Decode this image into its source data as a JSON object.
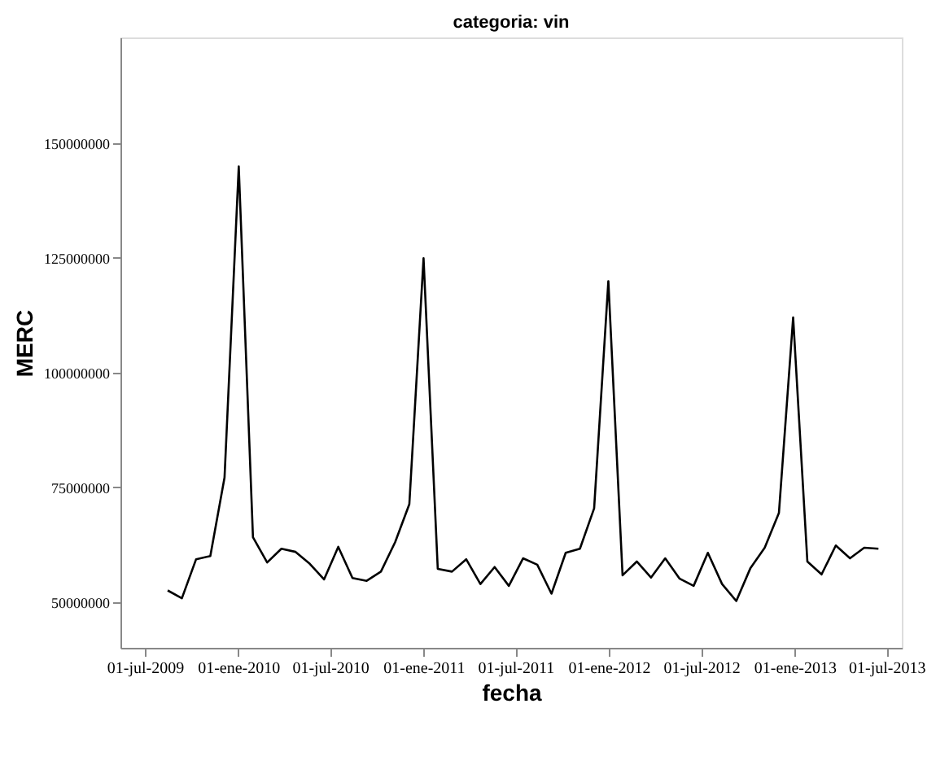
{
  "chart_data": {
    "type": "line",
    "title": "categoria: vin",
    "xlabel": "fecha",
    "ylabel": "MERC",
    "x": [
      "2009-08-15",
      "2009-09-12",
      "2009-10-10",
      "2009-11-07",
      "2009-12-05",
      "2010-01-02",
      "2010-01-30",
      "2010-02-27",
      "2010-03-27",
      "2010-04-24",
      "2010-05-22",
      "2010-06-19",
      "2010-07-17",
      "2010-08-14",
      "2010-09-11",
      "2010-10-09",
      "2010-11-06",
      "2010-12-04",
      "2011-01-01",
      "2011-01-29",
      "2011-02-26",
      "2011-03-26",
      "2011-04-23",
      "2011-05-21",
      "2011-06-18",
      "2011-07-16",
      "2011-08-13",
      "2011-09-10",
      "2011-10-08",
      "2011-11-05",
      "2011-12-03",
      "2011-12-31",
      "2012-01-28",
      "2012-02-25",
      "2012-03-24",
      "2012-04-21",
      "2012-05-19",
      "2012-06-16",
      "2012-07-14",
      "2012-08-11",
      "2012-09-08",
      "2012-10-06",
      "2012-11-03",
      "2012-12-01",
      "2012-12-29",
      "2013-01-26",
      "2013-02-23",
      "2013-03-23",
      "2013-04-20",
      "2013-05-18",
      "2013-06-15"
    ],
    "series": [
      {
        "color": "#000000",
        "values": [
          52500000,
          50800000,
          59300000,
          60000000,
          77100000,
          144900000,
          64100000,
          58600000,
          61600000,
          60900000,
          58300000,
          54900000,
          62000000,
          55200000,
          54600000,
          56600000,
          63000000,
          71300000,
          124900000,
          57200000,
          56600000,
          59300000,
          53900000,
          57600000,
          53500000,
          59500000,
          58100000,
          51800000,
          60700000,
          61600000,
          70400000,
          119900000,
          55800000,
          58800000,
          55300000,
          59500000,
          55100000,
          53500000,
          60700000,
          53900000,
          50200000,
          57400000,
          61800000,
          69400000,
          112000000,
          58800000,
          56000000,
          62300000,
          59500000,
          61800000,
          61600000
        ]
      }
    ],
    "xlim": [
      "2009-05-14",
      "2013-07-31"
    ],
    "xticks": [
      {
        "value": "2009-07-01",
        "label": "01-jul-2009"
      },
      {
        "value": "2010-01-01",
        "label": "01-ene-2010"
      },
      {
        "value": "2010-07-01",
        "label": "01-jul-2010"
      },
      {
        "value": "2011-01-01",
        "label": "01-ene-2011"
      },
      {
        "value": "2011-07-01",
        "label": "01-jul-2011"
      },
      {
        "value": "2012-01-01",
        "label": "01-ene-2012"
      },
      {
        "value": "2012-07-01",
        "label": "01-jul-2012"
      },
      {
        "value": "2013-01-01",
        "label": "01-ene-2013"
      },
      {
        "value": "2013-07-01",
        "label": "01-jul-2013"
      }
    ],
    "ylim": [
      40000000,
      173000000
    ],
    "yticks": [
      50000000,
      75000000,
      100000000,
      125000000,
      150000000
    ],
    "grid": false
  }
}
